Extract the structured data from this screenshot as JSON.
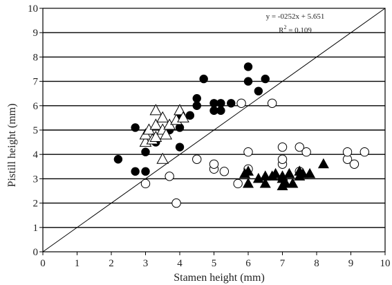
{
  "chart_data": {
    "type": "scatter",
    "xlabel": "Stamen height (mm)",
    "ylabel": "Pistill height (mm)",
    "xlim": [
      0,
      10
    ],
    "ylim": [
      0,
      10
    ],
    "x_ticks": [
      "0",
      "1",
      "2",
      "3",
      "4",
      "5",
      "6",
      "7",
      "8",
      "9",
      "10"
    ],
    "y_ticks": [
      "0",
      "1",
      "2",
      "3",
      "4",
      "5",
      "6",
      "7",
      "8",
      "9",
      "10"
    ],
    "grid": "horizontal",
    "annotation": {
      "equation": "y = -0252x + 5.651",
      "r2_prefix": "R",
      "r2_sup": "2",
      "r2_value": " = 0.109"
    },
    "reference_line": {
      "label": "",
      "from": [
        0,
        0
      ],
      "to": [
        10,
        10
      ]
    },
    "series": [
      {
        "marker": "filled-circle",
        "points": [
          [
            2.2,
            3.8
          ],
          [
            2.7,
            5.1
          ],
          [
            2.7,
            3.3
          ],
          [
            3.0,
            3.3
          ],
          [
            3.0,
            4.1
          ],
          [
            3.3,
            4.5
          ],
          [
            3.7,
            5.0
          ],
          [
            4.0,
            5.1
          ],
          [
            4.0,
            5.6
          ],
          [
            4.0,
            4.3
          ],
          [
            4.3,
            5.6
          ],
          [
            4.5,
            6.0
          ],
          [
            4.5,
            6.3
          ],
          [
            4.7,
            7.1
          ],
          [
            5.0,
            5.8
          ],
          [
            5.0,
            6.1
          ],
          [
            5.2,
            5.8
          ],
          [
            5.2,
            6.1
          ],
          [
            5.5,
            6.1
          ],
          [
            6.0,
            7.0
          ],
          [
            6.0,
            7.6
          ],
          [
            6.3,
            6.6
          ],
          [
            6.5,
            7.1
          ]
        ]
      },
      {
        "marker": "open-circle",
        "points": [
          [
            3.0,
            2.8
          ],
          [
            3.7,
            3.1
          ],
          [
            3.9,
            2.0
          ],
          [
            4.5,
            3.8
          ],
          [
            5.0,
            3.4
          ],
          [
            5.0,
            3.6
          ],
          [
            5.3,
            3.3
          ],
          [
            5.7,
            2.8
          ],
          [
            5.8,
            6.1
          ],
          [
            6.0,
            3.4
          ],
          [
            6.0,
            4.1
          ],
          [
            6.7,
            6.1
          ],
          [
            7.0,
            3.6
          ],
          [
            7.0,
            3.8
          ],
          [
            7.0,
            4.3
          ],
          [
            7.5,
            3.3
          ],
          [
            7.5,
            4.3
          ],
          [
            7.7,
            4.1
          ],
          [
            8.9,
            3.8
          ],
          [
            8.9,
            4.1
          ],
          [
            9.1,
            3.6
          ],
          [
            9.4,
            4.1
          ]
        ]
      },
      {
        "marker": "open-triangle",
        "points": [
          [
            3.0,
            4.5
          ],
          [
            3.0,
            4.8
          ],
          [
            3.1,
            5.0
          ],
          [
            3.2,
            4.6
          ],
          [
            3.3,
            5.8
          ],
          [
            3.3,
            5.2
          ],
          [
            3.3,
            4.7
          ],
          [
            3.5,
            5.5
          ],
          [
            3.5,
            5.0
          ],
          [
            3.5,
            3.8
          ],
          [
            3.6,
            4.8
          ],
          [
            3.7,
            5.2
          ],
          [
            3.9,
            5.4
          ],
          [
            4.0,
            5.8
          ],
          [
            4.1,
            5.5
          ]
        ]
      },
      {
        "marker": "filled-triangle",
        "points": [
          [
            5.9,
            3.2
          ],
          [
            6.0,
            2.8
          ],
          [
            6.0,
            3.3
          ],
          [
            6.3,
            3.0
          ],
          [
            6.5,
            3.1
          ],
          [
            6.5,
            2.8
          ],
          [
            6.7,
            3.1
          ],
          [
            6.8,
            3.2
          ],
          [
            7.0,
            2.7
          ],
          [
            7.0,
            3.0
          ],
          [
            7.0,
            3.1
          ],
          [
            7.1,
            2.8
          ],
          [
            7.2,
            3.2
          ],
          [
            7.3,
            2.8
          ],
          [
            7.5,
            3.3
          ],
          [
            7.5,
            3.1
          ],
          [
            7.6,
            3.2
          ],
          [
            7.8,
            3.2
          ],
          [
            8.2,
            3.6
          ]
        ]
      }
    ]
  }
}
